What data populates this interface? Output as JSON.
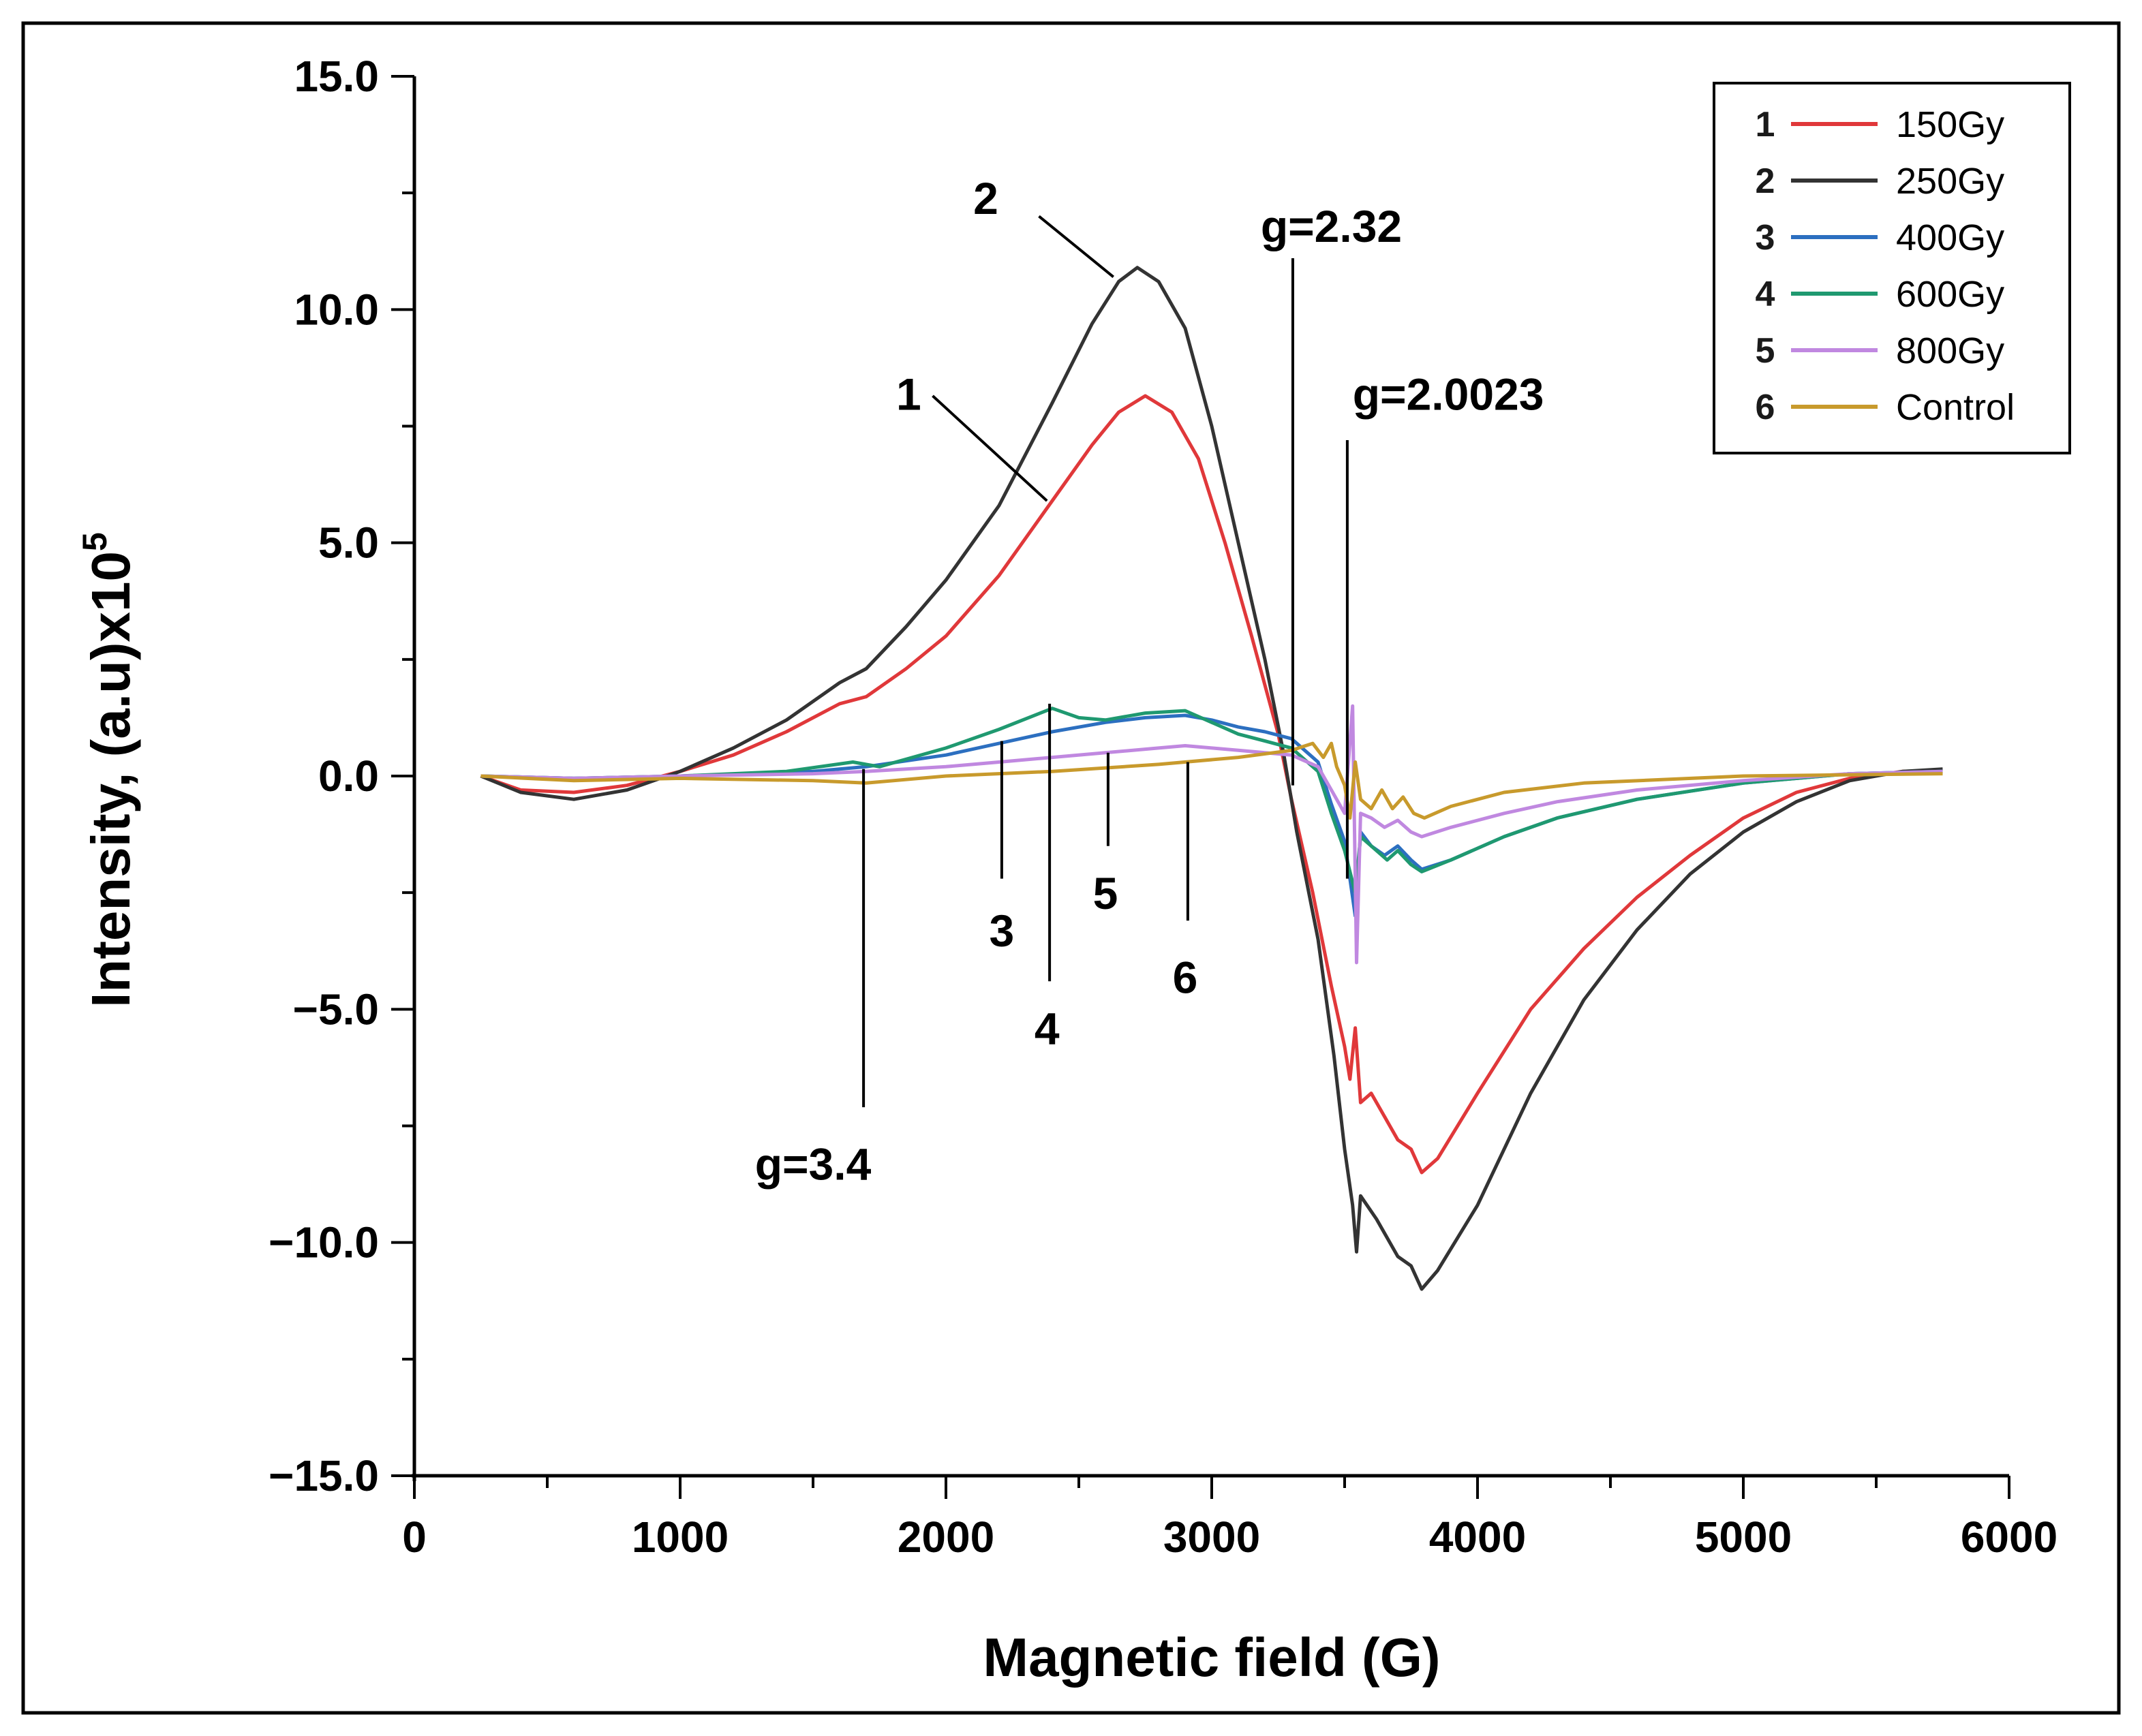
{
  "chart_data": {
    "type": "line",
    "title": "",
    "xlabel": "Magnetic field (G)",
    "ylabel": "Intensity, (a.u)x10",
    "ylabel_exponent": "5",
    "xlim": [
      0,
      6000
    ],
    "ylim": [
      -15,
      15
    ],
    "x_ticks": [
      0,
      1000,
      2000,
      3000,
      4000,
      5000,
      6000
    ],
    "x_tick_labels": [
      "0",
      "1000",
      "2000",
      "3000",
      "4000",
      "5000",
      "6000"
    ],
    "y_ticks": [
      15,
      10,
      5,
      0,
      -5,
      -10,
      -15
    ],
    "y_tick_labels": [
      "15.0",
      "10.0",
      "5.0",
      "0.0",
      "−5.0",
      "−10.0",
      "−15.0"
    ],
    "grid": false,
    "legend_position": "top-right",
    "series": [
      {
        "id": "1",
        "name": "150Gy",
        "color": "#e0383a",
        "points": [
          [
            250,
            0
          ],
          [
            400,
            -0.3
          ],
          [
            600,
            -0.35
          ],
          [
            800,
            -0.2
          ],
          [
            1000,
            0.1
          ],
          [
            1200,
            0.45
          ],
          [
            1400,
            0.95
          ],
          [
            1600,
            1.55
          ],
          [
            1700,
            1.7
          ],
          [
            1850,
            2.3
          ],
          [
            2000,
            3.0
          ],
          [
            2200,
            4.3
          ],
          [
            2400,
            5.9
          ],
          [
            2550,
            7.1
          ],
          [
            2650,
            7.8
          ],
          [
            2750,
            8.15
          ],
          [
            2850,
            7.8
          ],
          [
            2950,
            6.8
          ],
          [
            3050,
            5.0
          ],
          [
            3150,
            3.0
          ],
          [
            3250,
            0.9
          ],
          [
            3300,
            -0.5
          ],
          [
            3380,
            -2.5
          ],
          [
            3450,
            -4.5
          ],
          [
            3500,
            -5.8
          ],
          [
            3520,
            -6.5
          ],
          [
            3540,
            -5.4
          ],
          [
            3560,
            -7.0
          ],
          [
            3600,
            -6.8
          ],
          [
            3650,
            -7.3
          ],
          [
            3700,
            -7.8
          ],
          [
            3750,
            -8.0
          ],
          [
            3790,
            -8.5
          ],
          [
            3850,
            -8.2
          ],
          [
            4000,
            -6.8
          ],
          [
            4200,
            -5.0
          ],
          [
            4400,
            -3.7
          ],
          [
            4600,
            -2.6
          ],
          [
            4800,
            -1.7
          ],
          [
            5000,
            -0.9
          ],
          [
            5200,
            -0.35
          ],
          [
            5400,
            -0.05
          ],
          [
            5600,
            0.1
          ],
          [
            5750,
            0.1
          ]
        ]
      },
      {
        "id": "2",
        "name": "250Gy",
        "color": "#333333",
        "points": [
          [
            250,
            0
          ],
          [
            400,
            -0.35
          ],
          [
            600,
            -0.5
          ],
          [
            800,
            -0.3
          ],
          [
            1000,
            0.1
          ],
          [
            1200,
            0.6
          ],
          [
            1400,
            1.2
          ],
          [
            1600,
            2.0
          ],
          [
            1700,
            2.3
          ],
          [
            1850,
            3.2
          ],
          [
            2000,
            4.2
          ],
          [
            2200,
            5.8
          ],
          [
            2400,
            8.0
          ],
          [
            2550,
            9.7
          ],
          [
            2650,
            10.6
          ],
          [
            2720,
            10.9
          ],
          [
            2800,
            10.6
          ],
          [
            2900,
            9.6
          ],
          [
            3000,
            7.5
          ],
          [
            3100,
            5.0
          ],
          [
            3200,
            2.5
          ],
          [
            3270,
            0.5
          ],
          [
            3320,
            -1.2
          ],
          [
            3400,
            -3.5
          ],
          [
            3460,
            -6.0
          ],
          [
            3500,
            -8.0
          ],
          [
            3530,
            -9.2
          ],
          [
            3545,
            -10.2
          ],
          [
            3560,
            -9.0
          ],
          [
            3620,
            -9.5
          ],
          [
            3700,
            -10.3
          ],
          [
            3750,
            -10.5
          ],
          [
            3790,
            -11.0
          ],
          [
            3850,
            -10.6
          ],
          [
            4000,
            -9.2
          ],
          [
            4200,
            -6.8
          ],
          [
            4400,
            -4.8
          ],
          [
            4600,
            -3.3
          ],
          [
            4800,
            -2.1
          ],
          [
            5000,
            -1.2
          ],
          [
            5200,
            -0.55
          ],
          [
            5400,
            -0.1
          ],
          [
            5600,
            0.1
          ],
          [
            5750,
            0.15
          ]
        ]
      },
      {
        "id": "3",
        "name": "400Gy",
        "color": "#2c6fc0",
        "points": [
          [
            250,
            0
          ],
          [
            600,
            -0.05
          ],
          [
            1000,
            0.0
          ],
          [
            1500,
            0.1
          ],
          [
            1700,
            0.2
          ],
          [
            2000,
            0.45
          ],
          [
            2200,
            0.7
          ],
          [
            2400,
            0.95
          ],
          [
            2600,
            1.15
          ],
          [
            2750,
            1.25
          ],
          [
            2900,
            1.3
          ],
          [
            3000,
            1.2
          ],
          [
            3100,
            1.05
          ],
          [
            3200,
            0.95
          ],
          [
            3300,
            0.8
          ],
          [
            3400,
            0.3
          ],
          [
            3450,
            -0.6
          ],
          [
            3500,
            -1.4
          ],
          [
            3540,
            -3.0
          ],
          [
            3560,
            -1.2
          ],
          [
            3600,
            -1.5
          ],
          [
            3650,
            -1.7
          ],
          [
            3700,
            -1.5
          ],
          [
            3750,
            -1.8
          ],
          [
            3790,
            -2.0
          ],
          [
            3900,
            -1.8
          ],
          [
            4100,
            -1.3
          ],
          [
            4300,
            -0.9
          ],
          [
            4600,
            -0.5
          ],
          [
            5000,
            -0.15
          ],
          [
            5400,
            0.05
          ],
          [
            5750,
            0.1
          ]
        ]
      },
      {
        "id": "4",
        "name": "600Gy",
        "color": "#1f9970",
        "points": [
          [
            250,
            0
          ],
          [
            600,
            -0.05
          ],
          [
            1000,
            0.0
          ],
          [
            1400,
            0.1
          ],
          [
            1650,
            0.3
          ],
          [
            1750,
            0.2
          ],
          [
            2000,
            0.6
          ],
          [
            2200,
            1.0
          ],
          [
            2400,
            1.45
          ],
          [
            2500,
            1.25
          ],
          [
            2600,
            1.2
          ],
          [
            2750,
            1.35
          ],
          [
            2900,
            1.4
          ],
          [
            3000,
            1.15
          ],
          [
            3100,
            0.9
          ],
          [
            3200,
            0.75
          ],
          [
            3300,
            0.6
          ],
          [
            3400,
            0.1
          ],
          [
            3450,
            -0.8
          ],
          [
            3500,
            -1.6
          ],
          [
            3540,
            -2.5
          ],
          [
            3560,
            -1.3
          ],
          [
            3620,
            -1.6
          ],
          [
            3660,
            -1.8
          ],
          [
            3700,
            -1.6
          ],
          [
            3750,
            -1.9
          ],
          [
            3790,
            -2.05
          ],
          [
            3900,
            -1.8
          ],
          [
            4100,
            -1.3
          ],
          [
            4300,
            -0.9
          ],
          [
            4600,
            -0.5
          ],
          [
            5000,
            -0.15
          ],
          [
            5400,
            0.05
          ],
          [
            5750,
            0.1
          ]
        ]
      },
      {
        "id": "5",
        "name": "800Gy",
        "color": "#c088e0",
        "points": [
          [
            250,
            0
          ],
          [
            600,
            -0.05
          ],
          [
            1000,
            0.0
          ],
          [
            1500,
            0.05
          ],
          [
            1700,
            0.1
          ],
          [
            2000,
            0.2
          ],
          [
            2200,
            0.3
          ],
          [
            2400,
            0.4
          ],
          [
            2600,
            0.5
          ],
          [
            2800,
            0.6
          ],
          [
            2900,
            0.65
          ],
          [
            3000,
            0.6
          ],
          [
            3100,
            0.55
          ],
          [
            3200,
            0.5
          ],
          [
            3300,
            0.45
          ],
          [
            3400,
            0.2
          ],
          [
            3450,
            -0.3
          ],
          [
            3500,
            -0.8
          ],
          [
            3530,
            1.5
          ],
          [
            3545,
            -4.0
          ],
          [
            3560,
            -0.8
          ],
          [
            3600,
            -0.9
          ],
          [
            3650,
            -1.1
          ],
          [
            3700,
            -0.95
          ],
          [
            3750,
            -1.2
          ],
          [
            3790,
            -1.3
          ],
          [
            3900,
            -1.1
          ],
          [
            4100,
            -0.8
          ],
          [
            4300,
            -0.55
          ],
          [
            4600,
            -0.3
          ],
          [
            5000,
            -0.1
          ],
          [
            5400,
            0.05
          ],
          [
            5750,
            0.1
          ]
        ]
      },
      {
        "id": "6",
        "name": "Control",
        "color": "#c89a2c",
        "points": [
          [
            250,
            0
          ],
          [
            600,
            -0.1
          ],
          [
            1000,
            -0.05
          ],
          [
            1500,
            -0.1
          ],
          [
            1700,
            -0.15
          ],
          [
            2000,
            0.0
          ],
          [
            2400,
            0.1
          ],
          [
            2800,
            0.25
          ],
          [
            3100,
            0.4
          ],
          [
            3300,
            0.55
          ],
          [
            3380,
            0.7
          ],
          [
            3420,
            0.4
          ],
          [
            3450,
            0.7
          ],
          [
            3470,
            0.2
          ],
          [
            3500,
            -0.2
          ],
          [
            3520,
            -0.9
          ],
          [
            3540,
            0.3
          ],
          [
            3560,
            -0.5
          ],
          [
            3600,
            -0.7
          ],
          [
            3640,
            -0.3
          ],
          [
            3680,
            -0.7
          ],
          [
            3720,
            -0.45
          ],
          [
            3760,
            -0.8
          ],
          [
            3800,
            -0.9
          ],
          [
            3900,
            -0.65
          ],
          [
            4100,
            -0.35
          ],
          [
            4400,
            -0.15
          ],
          [
            5000,
            0.0
          ],
          [
            5750,
            0.05
          ]
        ]
      }
    ],
    "annotations": [
      {
        "text": "2",
        "x": 2150,
        "y": 12.4,
        "line": [
          [
            2350,
            12.0
          ],
          [
            2630,
            10.7
          ]
        ]
      },
      {
        "text": "1",
        "x": 1860,
        "y": 8.2,
        "line": [
          [
            1950,
            8.15
          ],
          [
            2380,
            5.9
          ]
        ]
      },
      {
        "text": "g=2.32",
        "x": 3450,
        "y": 11.8,
        "line": [
          [
            3305,
            11.1
          ],
          [
            3305,
            -0.2
          ]
        ]
      },
      {
        "text": "g=2.0023",
        "x": 3890,
        "y": 8.2,
        "line": [
          [
            3510,
            7.2
          ],
          [
            3510,
            -2.2
          ]
        ]
      },
      {
        "text": "3",
        "x": 2210,
        "y": -3.3,
        "line": [
          [
            2210,
            0.75
          ],
          [
            2210,
            -2.2
          ]
        ]
      },
      {
        "text": "4",
        "x": 2380,
        "y": -5.4,
        "line": [
          [
            2390,
            1.55
          ],
          [
            2390,
            -4.4
          ]
        ]
      },
      {
        "text": "5",
        "x": 2600,
        "y": -2.5,
        "line": [
          [
            2610,
            0.5
          ],
          [
            2610,
            -1.5
          ]
        ]
      },
      {
        "text": "6",
        "x": 2900,
        "y": -4.3,
        "line": [
          [
            2910,
            0.3
          ],
          [
            2910,
            -3.1
          ]
        ]
      },
      {
        "text": "g=3.4",
        "x": 1500,
        "y": -8.3,
        "line": [
          [
            1690,
            0.15
          ],
          [
            1690,
            -7.1
          ]
        ]
      }
    ]
  }
}
